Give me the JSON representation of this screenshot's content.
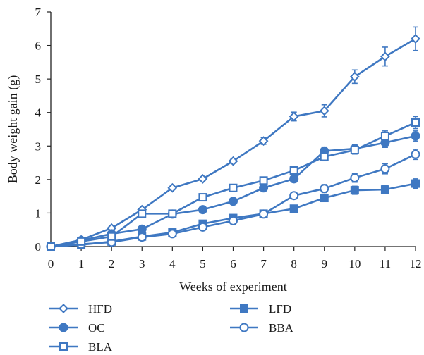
{
  "chart_data": {
    "type": "line",
    "title": "",
    "xlabel": "Weeks of experiment",
    "ylabel": "Body weight gain (g)",
    "x": [
      0,
      1,
      2,
      3,
      4,
      5,
      6,
      7,
      8,
      9,
      10,
      11,
      12
    ],
    "xlim": [
      0,
      12
    ],
    "ylim": [
      0,
      7
    ],
    "x_ticks": [
      "0",
      "1",
      "2",
      "3",
      "4",
      "5",
      "6",
      "7",
      "8",
      "9",
      "10",
      "11",
      "12"
    ],
    "y_ticks": [
      "0",
      "1",
      "2",
      "3",
      "4",
      "5",
      "6",
      "7"
    ],
    "grid": false,
    "legend_placement": "bottom",
    "line_color": "#3f78c2",
    "series": [
      {
        "name": "HFD",
        "marker": "diamond-open",
        "values": [
          0,
          0.2,
          0.55,
          1.1,
          1.75,
          2.02,
          2.55,
          3.15,
          3.88,
          4.05,
          5.07,
          5.67,
          6.2
        ],
        "errors": [
          0,
          0.03,
          0.04,
          0.05,
          0.05,
          0.05,
          0.06,
          0.1,
          0.13,
          0.18,
          0.2,
          0.28,
          0.35
        ]
      },
      {
        "name": "LFD",
        "marker": "square-filled",
        "values": [
          0,
          0.05,
          0.15,
          0.3,
          0.42,
          0.68,
          0.85,
          0.98,
          1.13,
          1.45,
          1.68,
          1.7,
          1.88
        ],
        "errors": [
          0,
          0.02,
          0.03,
          0.04,
          0.05,
          0.06,
          0.06,
          0.07,
          0.08,
          0.1,
          0.12,
          0.12,
          0.14
        ]
      },
      {
        "name": "OC",
        "marker": "circle-filled",
        "values": [
          0,
          0.18,
          0.38,
          0.52,
          0.97,
          1.1,
          1.35,
          1.75,
          2.02,
          2.85,
          2.92,
          3.1,
          3.3
        ],
        "errors": [
          0,
          0.03,
          0.04,
          0.05,
          0.05,
          0.06,
          0.06,
          0.08,
          0.1,
          0.12,
          0.12,
          0.14,
          0.15
        ]
      },
      {
        "name": "BBA",
        "marker": "circle-open",
        "values": [
          0,
          0.07,
          0.13,
          0.28,
          0.38,
          0.58,
          0.77,
          0.97,
          1.52,
          1.73,
          2.05,
          2.32,
          2.75
        ],
        "errors": [
          0,
          0.02,
          0.03,
          0.04,
          0.05,
          0.06,
          0.06,
          0.07,
          0.1,
          0.12,
          0.13,
          0.15,
          0.15
        ]
      },
      {
        "name": "BLA",
        "marker": "square-open",
        "values": [
          0,
          0.15,
          0.3,
          0.98,
          0.98,
          1.47,
          1.75,
          1.97,
          2.27,
          2.68,
          2.88,
          3.3,
          3.7
        ],
        "errors": [
          0,
          0.03,
          0.04,
          0.05,
          0.05,
          0.06,
          0.06,
          0.08,
          0.1,
          0.12,
          0.12,
          0.15,
          0.18
        ]
      }
    ]
  }
}
